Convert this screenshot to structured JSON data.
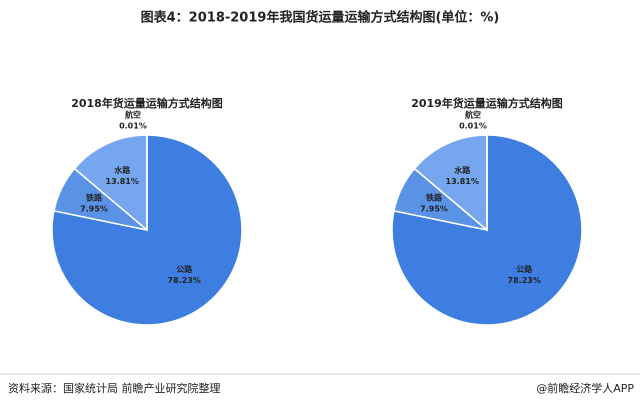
{
  "title": "图表4：2018-2019年我国货运量运输方式结构图(单位：%)",
  "chart_data": [
    {
      "type": "pie",
      "title": "2018年货运量运输方式结构图",
      "categories": [
        "公路",
        "铁路",
        "水路",
        "航空"
      ],
      "values": [
        78.23,
        7.95,
        13.81,
        0.01
      ],
      "value_labels": [
        "78.23%",
        "7.95%",
        "13.81%",
        "0.01%"
      ],
      "colors": [
        "#3d7ee0",
        "#5a93e6",
        "#76a6ee",
        "#a3c4f4"
      ]
    },
    {
      "type": "pie",
      "title": "2019年货运量运输方式结构图",
      "categories": [
        "公路",
        "铁路",
        "水路",
        "航空"
      ],
      "values": [
        78.23,
        7.95,
        13.81,
        0.01
      ],
      "value_labels": [
        "78.23%",
        "7.95%",
        "13.81%",
        "0.01%"
      ],
      "colors": [
        "#3d7ee0",
        "#5a93e6",
        "#76a6ee",
        "#a3c4f4"
      ]
    }
  ],
  "footer": {
    "source": "资料来源：国家统计局 前瞻产业研究院整理",
    "brand": "@前瞻经济学人APP"
  }
}
